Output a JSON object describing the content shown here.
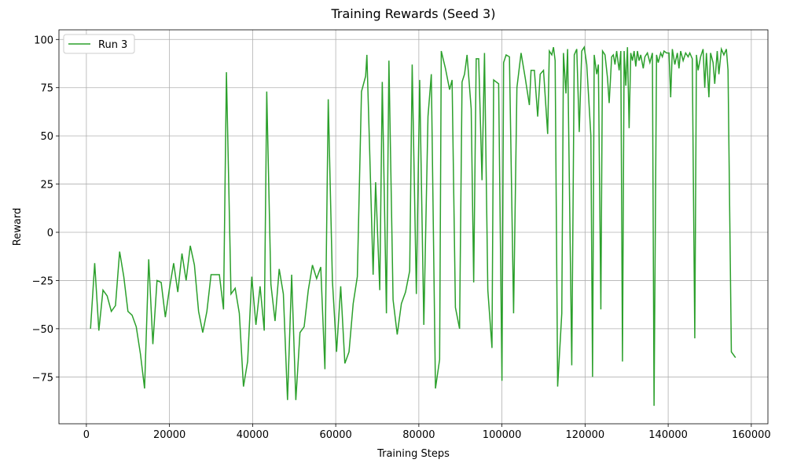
{
  "chart_data": {
    "type": "line",
    "title": "Training Rewards (Seed 3)",
    "x_label": "Training Steps",
    "y_label": "Reward",
    "x": [
      1000,
      2000,
      3000,
      4000,
      5000,
      6000,
      7000,
      8000,
      9000,
      10000,
      11000,
      12000,
      13000,
      14000,
      15000,
      16000,
      17000,
      18000,
      19000,
      20000,
      21000,
      22000,
      23000,
      24000,
      25000,
      26000,
      27000,
      28000,
      29000,
      30000,
      31000,
      32000,
      33000,
      33700,
      34800,
      35800,
      36800,
      37800,
      38800,
      39800,
      40800,
      41800,
      42800,
      43400,
      44400,
      45400,
      46400,
      47400,
      48400,
      49400,
      50400,
      51400,
      52400,
      53400,
      54400,
      55400,
      56400,
      57400,
      58200,
      59200,
      60200,
      61200,
      62200,
      63200,
      64200,
      65200,
      66200,
      67200,
      67500,
      68200,
      69000,
      69600,
      70600,
      71200,
      72200,
      72800,
      73800,
      74800,
      75800,
      76800,
      77800,
      78400,
      79400,
      80200,
      81200,
      82200,
      83000,
      84000,
      85000,
      85400,
      86400,
      87400,
      88000,
      88800,
      89800,
      90400,
      91000,
      91600,
      92600,
      93200,
      93800,
      94400,
      95200,
      95800,
      96600,
      97600,
      98000,
      99200,
      100000,
      100400,
      101000,
      101800,
      102800,
      103600,
      104600,
      105600,
      106600,
      107000,
      107800,
      108600,
      109200,
      110000,
      111000,
      111400,
      112000,
      112400,
      112800,
      113400,
      114400,
      114800,
      115400,
      115800,
      116800,
      117400,
      118000,
      118600,
      119200,
      119800,
      120400,
      121400,
      121800,
      122200,
      122800,
      123200,
      123800,
      124200,
      124800,
      125400,
      125800,
      126400,
      126800,
      127200,
      127600,
      128200,
      128600,
      129000,
      129400,
      129800,
      130200,
      130600,
      131000,
      131400,
      131800,
      132200,
      132600,
      133000,
      133400,
      134000,
      134400,
      135000,
      135600,
      136200,
      136600,
      137200,
      137600,
      138200,
      138600,
      139000,
      139600,
      140200,
      140600,
      141000,
      141600,
      142200,
      142600,
      143000,
      143600,
      144200,
      144800,
      145200,
      145800,
      146400,
      146800,
      147200,
      147800,
      148400,
      148800,
      149200,
      149800,
      150200,
      150800,
      151200,
      151800,
      152200,
      152800,
      153400,
      154000,
      154400,
      155200,
      156200
    ],
    "series": [
      {
        "name": "Run 3",
        "color": "#2ca02c",
        "values": [
          -50,
          -16,
          -51,
          -30,
          -33,
          -41,
          -38,
          -10,
          -23,
          -41,
          -43,
          -49,
          -63,
          -81,
          -14,
          -58,
          -25,
          -26,
          -44,
          -29,
          -16,
          -31,
          -11,
          -25,
          -7,
          -17,
          -41,
          -52,
          -41,
          -22,
          -22,
          -22,
          -40,
          83,
          -32,
          -29,
          -42,
          -80,
          -67,
          -23,
          -48,
          -28,
          -51,
          73,
          -27,
          -46,
          -19,
          -32,
          -87,
          -22,
          -87,
          -52,
          -49,
          -30,
          -17,
          -24,
          -18,
          -71,
          69,
          -25,
          -62,
          -28,
          -68,
          -62,
          -37,
          -23,
          73,
          81,
          92,
          40,
          -22,
          26,
          -30,
          78,
          -42,
          89,
          -35,
          -53,
          -37,
          -31,
          -20,
          87,
          -32,
          79,
          -48,
          60,
          82,
          -81,
          -66,
          94,
          85,
          74,
          79,
          -39,
          -50,
          78,
          82,
          92,
          64,
          -26,
          90,
          90,
          27,
          93,
          -30,
          -60,
          79,
          77,
          -77,
          88,
          92,
          91,
          -42,
          75,
          93,
          80,
          66,
          84,
          84,
          60,
          82,
          84,
          51,
          94,
          92,
          96,
          89,
          -80,
          -42,
          93,
          72,
          95,
          -69,
          92,
          95,
          52,
          94,
          96,
          87,
          50,
          -75,
          92,
          82,
          87,
          -40,
          94,
          92,
          80,
          67,
          91,
          92,
          87,
          94,
          84,
          94,
          -67,
          94,
          76,
          96,
          54,
          93,
          89,
          94,
          86,
          94,
          89,
          92,
          85,
          91,
          93,
          88,
          93,
          -90,
          92,
          88,
          93,
          91,
          94,
          93,
          93,
          70,
          95,
          87,
          93,
          85,
          94,
          89,
          93,
          91,
          93,
          90,
          -55,
          92,
          84,
          91,
          95,
          75,
          93,
          70,
          93,
          88,
          77,
          94,
          82,
          95,
          92,
          95,
          84,
          -62,
          -65
        ]
      }
    ],
    "xlim": [
      -6600,
      164000
    ],
    "ylim": [
      -99.3,
      105
    ],
    "xticks": [
      0,
      20000,
      40000,
      60000,
      80000,
      100000,
      120000,
      140000,
      160000
    ],
    "yticks": [
      {
        "value": -75,
        "label": "−75"
      },
      {
        "value": -50,
        "label": "−50"
      },
      {
        "value": -25,
        "label": "−25"
      },
      0,
      25,
      50,
      75,
      100
    ],
    "grid": true,
    "legend": "upper left"
  }
}
